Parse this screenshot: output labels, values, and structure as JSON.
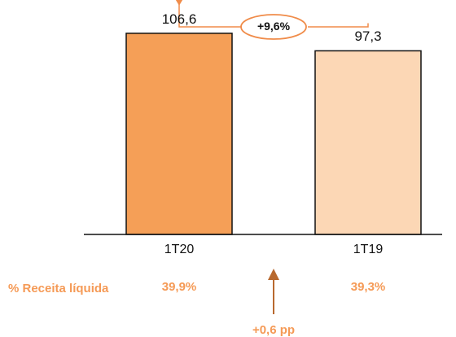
{
  "chart_data": {
    "type": "bar",
    "categories": [
      "1T20",
      "1T19"
    ],
    "values": [
      106.6,
      97.3
    ],
    "value_labels": [
      "106,6",
      "97,3"
    ],
    "bar_colors": [
      "#f59f57",
      "#fcd7b5"
    ],
    "ylim": [
      0,
      110
    ],
    "title": "",
    "xlabel": "",
    "ylabel": "",
    "grid": false
  },
  "growth_annotation": {
    "text": "+9,6%",
    "color": "#f08c4a"
  },
  "margin_row": {
    "label": "% Receita líquida",
    "values": [
      "39,9%",
      "39,3%"
    ],
    "change_text": "+0,6 pp",
    "color": "#f59a56",
    "arrow_color": "#b8692f"
  }
}
